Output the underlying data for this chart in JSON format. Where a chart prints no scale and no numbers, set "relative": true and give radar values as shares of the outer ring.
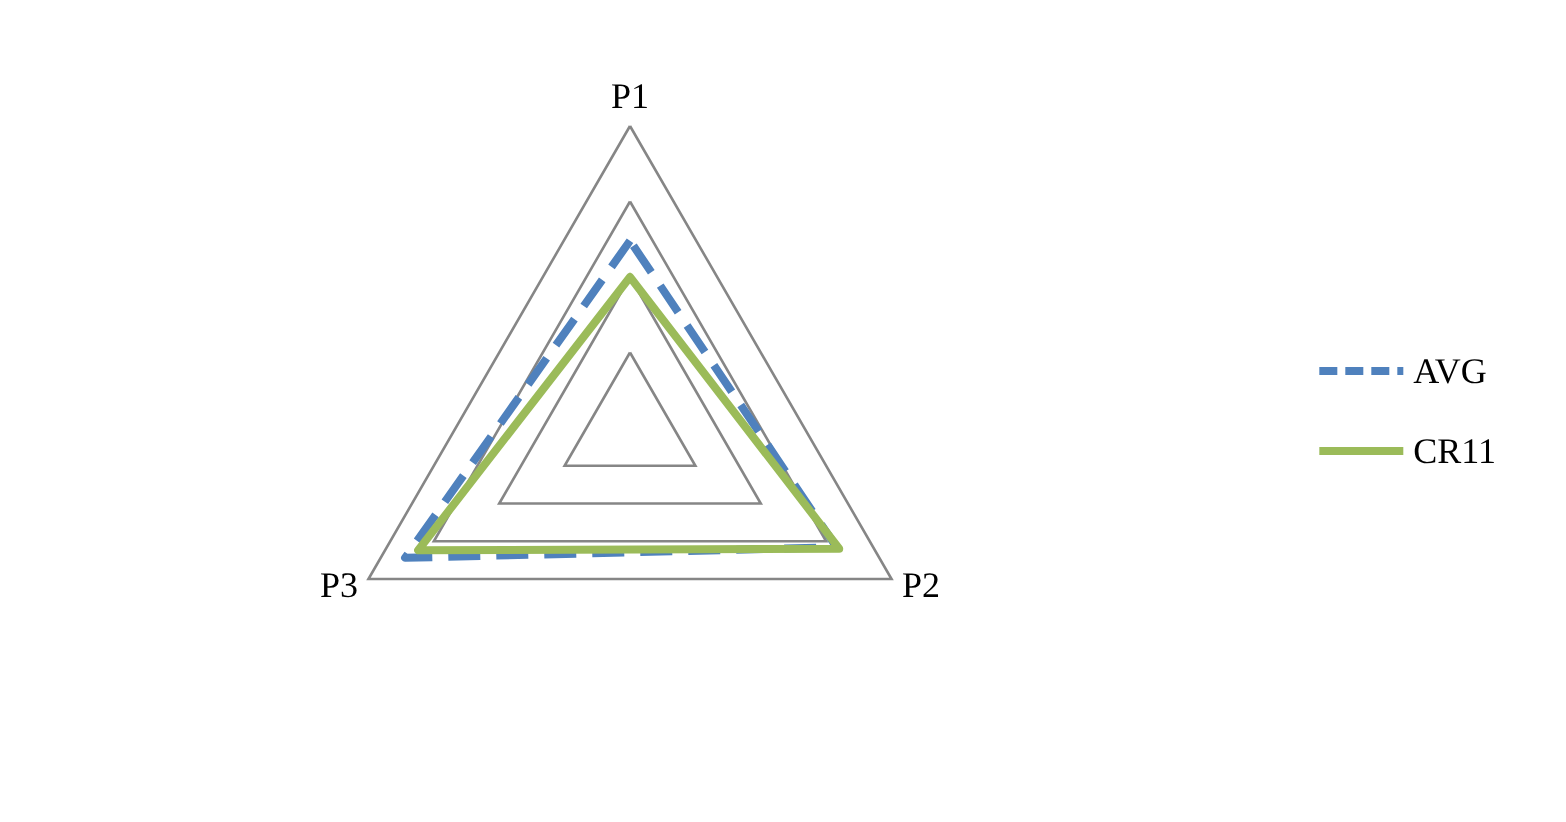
{
  "chart_data": {
    "type": "radar",
    "relative": true,
    "categories": [
      "P1",
      "P2",
      "P3"
    ],
    "series": [
      {
        "name": "AVG",
        "color": "#4f81bd",
        "line_style": "dashed",
        "values": [
          0.62,
          0.79,
          0.86
        ]
      },
      {
        "name": "CR11",
        "color": "#9bbb59",
        "line_style": "solid",
        "values": [
          0.5,
          0.8,
          0.81
        ]
      }
    ],
    "legend": "right",
    "marker": "none"
  }
}
